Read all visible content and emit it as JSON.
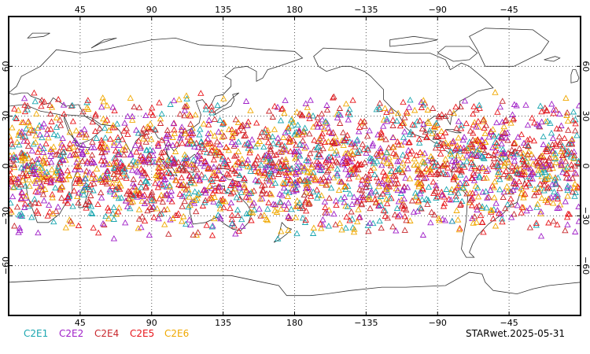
{
  "chart_data": {
    "type": "scatter",
    "projection": "cylindrical equidistant, centered on 180",
    "lon_range": [
      0,
      360
    ],
    "lat_range": [
      -90,
      90
    ],
    "grid": true,
    "grid_style": "dotted",
    "coastlines": true,
    "marker": "open-triangle",
    "top_ticks": [
      {
        "lon": 45,
        "label": "45"
      },
      {
        "lon": 90,
        "label": "90"
      },
      {
        "lon": 135,
        "label": "135"
      },
      {
        "lon": 180,
        "label": "180"
      },
      {
        "lon": 225,
        "label": "−135"
      },
      {
        "lon": 270,
        "label": "−90"
      },
      {
        "lon": 315,
        "label": "−45"
      }
    ],
    "bottom_ticks": [
      {
        "lon": 45,
        "label": "45"
      },
      {
        "lon": 90,
        "label": "90"
      },
      {
        "lon": 135,
        "label": "135"
      },
      {
        "lon": 180,
        "label": "180"
      },
      {
        "lon": 225,
        "label": "−135"
      },
      {
        "lon": 270,
        "label": "−90"
      },
      {
        "lon": 315,
        "label": "−45"
      }
    ],
    "lat_ticks": [
      {
        "lat": 60,
        "label": "60"
      },
      {
        "lat": 30,
        "label": "30"
      },
      {
        "lat": 0,
        "label": "0"
      },
      {
        "lat": -30,
        "label": "−30"
      },
      {
        "lat": -60,
        "label": "−60"
      }
    ],
    "observation_band_lat": [
      -45,
      45
    ],
    "series": [
      {
        "name": "C2E1",
        "color": "#1aa6b0",
        "count": 420
      },
      {
        "name": "C2E2",
        "color": "#a020c8",
        "count": 520
      },
      {
        "name": "C2E4",
        "color": "#c8282d",
        "count": 520
      },
      {
        "name": "C2E5",
        "color": "#e8161b",
        "count": 560
      },
      {
        "name": "C2E6",
        "color": "#f0a800",
        "count": 520
      }
    ],
    "footer": "STARwet.2025-05-31"
  }
}
